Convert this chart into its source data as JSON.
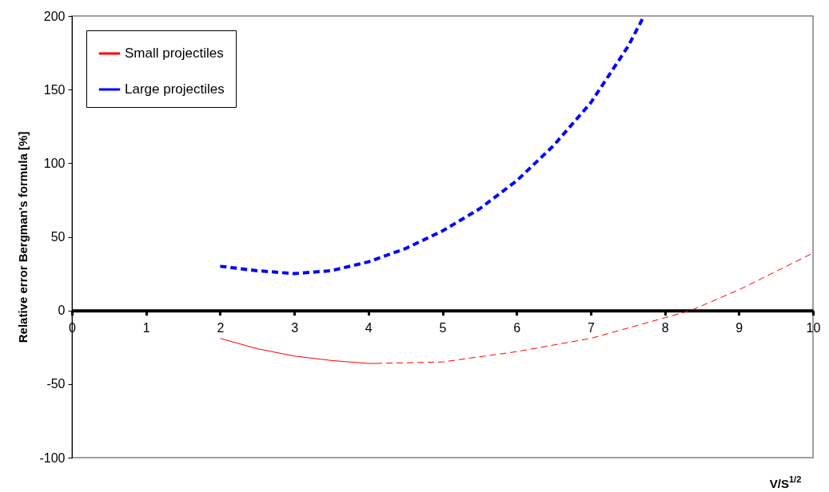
{
  "chart_data": {
    "type": "line",
    "xlabel": "V/S$^{1/2}$",
    "ylabel": "Relative error Bergman's formula [%]",
    "xlim": [
      0,
      10
    ],
    "xticks": [
      0,
      1,
      2,
      3,
      4,
      5,
      6,
      7,
      8,
      9,
      10
    ],
    "ylim": [
      -100,
      200
    ],
    "yticks": [
      -100,
      -50,
      0,
      50,
      100,
      150,
      200
    ],
    "grid": false,
    "legend": "top left",
    "marker": "none",
    "series": [
      {
        "name": "Small projectiles",
        "color": "#ff0000",
        "line_style": "solid",
        "x": [
          2,
          2.5,
          3,
          3.5,
          4,
          4.1
        ],
        "values": [
          -19,
          -26,
          -31,
          -34,
          -36,
          -36
        ]
      },
      {
        "color": "#ff0000",
        "line_style": "dashed",
        "x": [
          4.1,
          5,
          6,
          7,
          8,
          8.35,
          9,
          10
        ],
        "values": [
          -36,
          -35,
          -28,
          -19,
          -5,
          0,
          14,
          39
        ]
      },
      {
        "name": "Large projectiles",
        "color": "#0000ff",
        "line_style": "dashed",
        "x": [
          2,
          2.5,
          3,
          3.5,
          4,
          4.5,
          5,
          5.5,
          6,
          6.5,
          7,
          7.5,
          7.72
        ],
        "values": [
          30,
          27,
          25,
          27,
          33,
          42,
          54,
          69,
          88,
          112,
          141,
          179,
          200
        ]
      }
    ]
  }
}
